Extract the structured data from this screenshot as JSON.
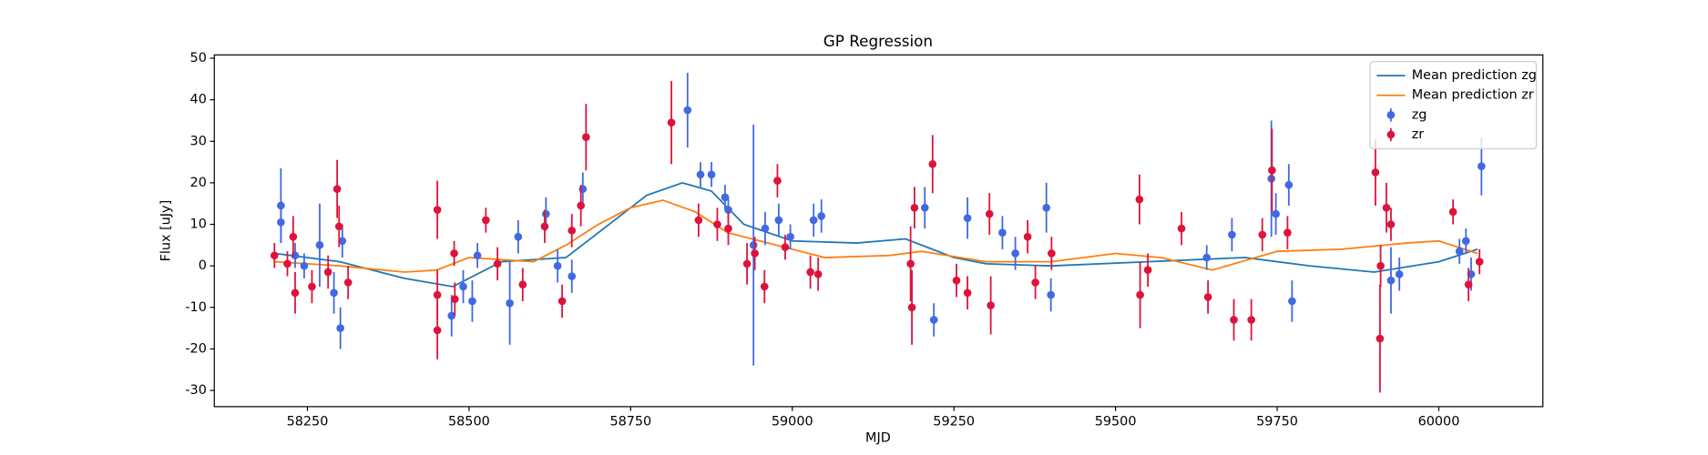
{
  "chart_data": {
    "type": "errorbar",
    "title": "GP Regression",
    "x_label": "MJD",
    "y_label": "Flux [uJy]",
    "xlim": [
      58106,
      60161
    ],
    "ylim": [
      -33.9,
      50.8
    ],
    "xticks": [
      58250,
      58500,
      58750,
      59000,
      59250,
      59500,
      59750,
      60000
    ],
    "yticks": [
      -30,
      -20,
      -10,
      0,
      10,
      20,
      30,
      40,
      50
    ],
    "legend": "upper right",
    "grid": false,
    "series": [
      {
        "name": "Mean prediction zg",
        "type": "line",
        "color": "#1f77b4",
        "x": [
          58200,
          58300,
          58400,
          58475,
          58550,
          58650,
          58700,
          58775,
          58830,
          58875,
          58925,
          59000,
          59100,
          59175,
          59250,
          59300,
          59400,
          59550,
          59700,
          59800,
          59900,
          60000,
          60060
        ],
        "values": [
          3,
          1,
          -3,
          -5,
          1,
          2,
          8,
          17,
          20,
          18,
          10,
          6,
          5.5,
          6.5,
          2,
          0.5,
          0,
          1,
          2,
          0,
          -1.5,
          1,
          4
        ]
      },
      {
        "name": "Mean prediction zr",
        "type": "line",
        "color": "#ff7f0e",
        "x": [
          58200,
          58300,
          58400,
          58450,
          58500,
          58550,
          58600,
          58650,
          58700,
          58750,
          58800,
          58850,
          58900,
          58950,
          59000,
          59050,
          59150,
          59200,
          59300,
          59400,
          59500,
          59570,
          59650,
          59750,
          59850,
          59950,
          60000,
          60060
        ],
        "values": [
          1,
          0,
          -1.5,
          -1,
          2,
          1.5,
          1,
          5,
          10,
          14,
          15.8,
          13,
          8,
          6,
          4,
          2,
          2.5,
          3.5,
          1,
          1,
          3,
          2,
          -1,
          3.5,
          4,
          5.5,
          6,
          3
        ]
      },
      {
        "name": "zg",
        "type": "errorbar",
        "color": "#4169e1",
        "x": [
          58209,
          58209,
          58231,
          58245,
          58269,
          58291,
          58301,
          58304,
          58473,
          58491,
          58505,
          58513,
          58563,
          58576,
          58619,
          58637,
          58659,
          58676,
          58838,
          58858,
          58875,
          58896,
          58901,
          58940,
          58958,
          58979,
          58997,
          59033,
          59045,
          59205,
          59219,
          59271,
          59325,
          59345,
          59393,
          59400,
          59641,
          59680,
          59741,
          59748,
          59768,
          59773,
          59926,
          59939,
          60032,
          60042,
          60050,
          60066
        ],
        "values": [
          14.5,
          10.5,
          2.5,
          0,
          5,
          -6.5,
          -15,
          6,
          -12,
          -5,
          -8.5,
          2.5,
          -9,
          7,
          12.5,
          0,
          -2.5,
          18.5,
          37.5,
          22,
          22,
          16.5,
          13.5,
          5,
          9,
          11,
          7,
          11,
          12,
          14,
          -13,
          11.5,
          8,
          3,
          14,
          -7,
          2,
          7.5,
          21,
          12.5,
          19.5,
          -8.5,
          -3.5,
          -2,
          3.5,
          6,
          -2,
          24
        ],
        "errors": [
          9,
          5,
          3,
          3,
          10,
          5,
          5,
          4,
          5,
          4,
          5,
          3,
          10,
          4,
          4,
          4,
          4,
          4,
          9,
          3,
          3,
          3,
          3,
          29,
          4,
          4,
          3,
          4,
          4,
          5,
          4,
          5,
          4,
          4,
          6,
          4,
          3,
          4,
          14,
          5,
          5,
          5,
          8,
          4,
          3,
          3,
          4,
          7
        ]
      },
      {
        "name": "zr",
        "type": "errorbar",
        "color": "#dc143c",
        "x": [
          58199,
          58219,
          58228,
          58231,
          58257,
          58282,
          58296,
          58299,
          58313,
          58451,
          58451,
          58451,
          58477,
          58478,
          58526,
          58544,
          58583,
          58617,
          58644,
          58659,
          58673,
          58681,
          58813,
          58855,
          58884,
          58901,
          58930,
          58942,
          58957,
          58977,
          58989,
          59028,
          59040,
          59183,
          59185,
          59189,
          59217,
          59254,
          59271,
          59305,
          59307,
          59364,
          59376,
          59401,
          59537,
          59538,
          59550,
          59602,
          59643,
          59683,
          59710,
          59727,
          59742,
          59766,
          59902,
          59909,
          59910,
          59919,
          59926,
          60022,
          60046,
          60063
        ],
        "values": [
          2.5,
          0.5,
          7,
          -6.5,
          -5,
          -1.5,
          18.5,
          9.5,
          -4,
          13.5,
          -15.5,
          -7,
          3,
          -8,
          11,
          0.5,
          -4.5,
          9.5,
          -8.5,
          8.5,
          14.5,
          31,
          34.5,
          11,
          10,
          9,
          0.5,
          3,
          -5,
          20.5,
          4.5,
          -1.5,
          -2,
          0.5,
          -10,
          14,
          24.5,
          -3.5,
          -6.5,
          12.5,
          -9.5,
          7,
          -4,
          3,
          16,
          -7,
          -1,
          9,
          -7.5,
          -13,
          -13,
          7.5,
          23,
          8,
          22.5,
          -17.5,
          0,
          14,
          10,
          13,
          -4.5,
          1
        ],
        "errors": [
          3,
          3,
          5,
          5,
          4,
          4,
          7,
          5,
          4,
          7,
          7,
          6,
          3,
          4,
          3,
          4,
          4,
          4,
          4,
          4,
          5,
          8,
          10,
          4,
          4,
          4,
          5,
          4,
          4,
          4,
          3,
          4,
          4,
          9,
          9,
          5,
          7,
          4,
          4,
          5,
          7,
          4,
          4,
          4,
          6,
          8,
          4,
          4,
          4,
          5,
          5,
          4,
          10,
          4,
          8,
          13,
          5,
          6,
          4,
          3,
          4,
          3
        ]
      }
    ]
  }
}
